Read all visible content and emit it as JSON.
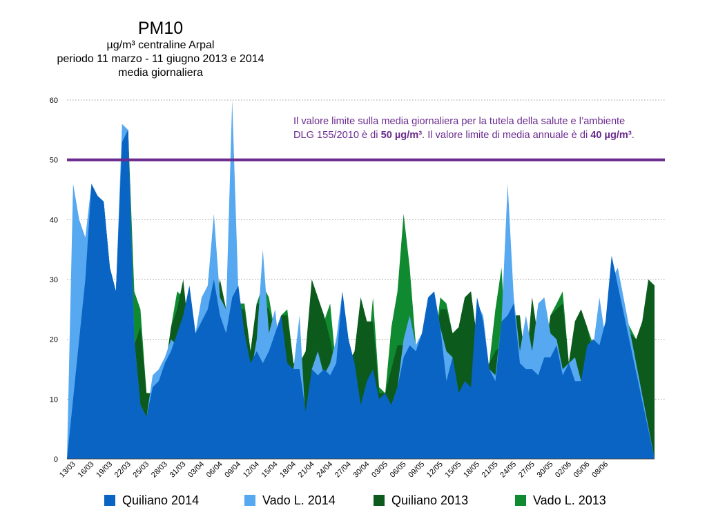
{
  "title_block": {
    "title": "PM10",
    "subtitle_unit": "µg/m³ centraline Arpal",
    "subtitle_period": "periodo 11 marzo - 11 giugno 2013 e 2014",
    "subtitle_stat": "media giornaliera"
  },
  "note": {
    "line1": "Il valore limite sulla media giornaliera per la tutela della salute e l’ambiente",
    "line2_a": "DLG 155/2010 è di ",
    "line2_b": "50 µg/m³",
    "line2_c": ". Il valore limite di media annuale è di ",
    "line2_d": "40 µg/m³",
    "line2_e": "."
  },
  "colors": {
    "quiliano_2014": "#0a64c4",
    "vado_2014": "#56a8f0",
    "quiliano_2013": "#0c5a1c",
    "vado_2013": "#108a30",
    "limit_line": "#6a2a8e",
    "grid": "#999999"
  },
  "chart_data": {
    "type": "area",
    "ylim": [
      0,
      60
    ],
    "yticks": [
      0,
      10,
      20,
      30,
      40,
      50,
      60
    ],
    "grid": "dotted horizontal",
    "legend_position": "bottom",
    "xtick_labels": [
      "13/03",
      "16/03",
      "19/03",
      "22/03",
      "25/03",
      "28/03",
      "31/03",
      "03/04",
      "06/04",
      "09/04",
      "12/04",
      "15/04",
      "18/04",
      "21/04",
      "24/04",
      "27/04",
      "30/04",
      "03/05",
      "06/05",
      "09/05",
      "12/05",
      "15/05",
      "18/05",
      "21/05",
      "24/05",
      "27/05",
      "30/05",
      "02/06",
      "05/06",
      "08/06"
    ],
    "limit_value": 50,
    "series": [
      {
        "name": "Vado L. 2013",
        "color_key": "vado_2013",
        "values": [
          0,
          8,
          20,
          30,
          45,
          44,
          43,
          32,
          28,
          53,
          55,
          28,
          25,
          11,
          11,
          14,
          15,
          22,
          28,
          27,
          22,
          21,
          21,
          25,
          25,
          30,
          25,
          27,
          26,
          26,
          18,
          26,
          29,
          27,
          21,
          24,
          25,
          16,
          15,
          15,
          30,
          27,
          23,
          26,
          15,
          14,
          16,
          18,
          27,
          16,
          27,
          12,
          11,
          22,
          28,
          41,
          32,
          19,
          19,
          15,
          18,
          27,
          26,
          21,
          22,
          27,
          28,
          20,
          15,
          16,
          25,
          32,
          14,
          24,
          23,
          15,
          27,
          20,
          17,
          24,
          26,
          28,
          16,
          23,
          25,
          22,
          19,
          20,
          14,
          28,
          26,
          24,
          22,
          20,
          23,
          30,
          29
        ]
      },
      {
        "name": "Quiliano 2013",
        "color_key": "quiliano_2013",
        "values": [
          0,
          8,
          20,
          30,
          45,
          44,
          43,
          32,
          28,
          53,
          55,
          19,
          22,
          11,
          11,
          14,
          14,
          22,
          25,
          30,
          20,
          21,
          21,
          25,
          25,
          30,
          25,
          26,
          25,
          25,
          18,
          26,
          26,
          25,
          21,
          24,
          24,
          16,
          16,
          18,
          30,
          27,
          24,
          20,
          15,
          14,
          16,
          18,
          27,
          23,
          23,
          11,
          11,
          15,
          19,
          19,
          19,
          19,
          18,
          10,
          18,
          25,
          25,
          21,
          22,
          27,
          28,
          20,
          15,
          16,
          18,
          19,
          14,
          24,
          24,
          15,
          27,
          20,
          17,
          24,
          25,
          26,
          16,
          23,
          25,
          22,
          17,
          18,
          14,
          23,
          25,
          22,
          21,
          20,
          23,
          30,
          29
        ]
      },
      {
        "name": "Vado L. 2014",
        "color_key": "vado_2014",
        "values": [
          0,
          46,
          40,
          37,
          46,
          44,
          43,
          32,
          28,
          56,
          55,
          20,
          9,
          7,
          14,
          15,
          17,
          20,
          19,
          20,
          29,
          21,
          27,
          29,
          41,
          27,
          25,
          60,
          28,
          20,
          14,
          20,
          35,
          21,
          25,
          16,
          15,
          15,
          24,
          6,
          15,
          18,
          14,
          16,
          20,
          28,
          20,
          12,
          7,
          12,
          14,
          8,
          9,
          9,
          12,
          20,
          24,
          19,
          21,
          25,
          28,
          22,
          18,
          17,
          11,
          9,
          9,
          26,
          24,
          15,
          14,
          23,
          46,
          27,
          18,
          24,
          18,
          26,
          27,
          21,
          20,
          15,
          16,
          17,
          13,
          18,
          19,
          27,
          20,
          30,
          32
        ]
      },
      {
        "name": "Quiliano 2014",
        "color_key": "quiliano_2014",
        "values": [
          0,
          10,
          20,
          30,
          46,
          44,
          43,
          32,
          28,
          53,
          55,
          20,
          9,
          7,
          12,
          13,
          16,
          18,
          21,
          24,
          29,
          21,
          23,
          25,
          30,
          24,
          21,
          27,
          29,
          21,
          16,
          18,
          16,
          18,
          21,
          24,
          16,
          15,
          15,
          8,
          15,
          14,
          15,
          14,
          16,
          28,
          20,
          16,
          9,
          13,
          15,
          10,
          11,
          9,
          12,
          17,
          19,
          18,
          21,
          27,
          28,
          22,
          13,
          17,
          11,
          13,
          12,
          27,
          23,
          15,
          13,
          23,
          24,
          26,
          16,
          15,
          15,
          14,
          17,
          17,
          19,
          14,
          16,
          13,
          13,
          19,
          20,
          19,
          23,
          34,
          29
        ]
      }
    ]
  },
  "legend": [
    {
      "label": "Quiliano 2014",
      "color_key": "quiliano_2014"
    },
    {
      "label": "Vado L. 2014",
      "color_key": "vado_2014"
    },
    {
      "label": "Quiliano 2013",
      "color_key": "quiliano_2013"
    },
    {
      "label": "Vado L. 2013",
      "color_key": "vado_2013"
    }
  ]
}
